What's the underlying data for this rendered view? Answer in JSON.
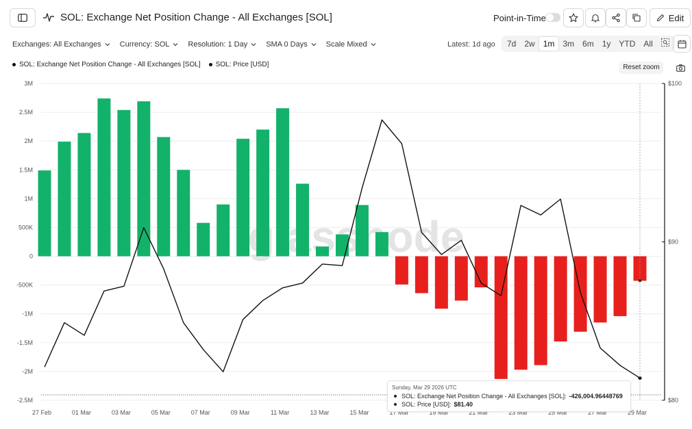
{
  "header": {
    "title": "SOL: Exchange Net Position Change - All Exchanges [SOL]",
    "point_in_time_label": "Point-in-Time",
    "point_in_time_enabled": false,
    "edit_label": "Edit",
    "icons": [
      "sidebar-icon",
      "chart-line-icon",
      "star-icon",
      "bell-icon",
      "share-icon",
      "copy-icon",
      "pencil-icon"
    ]
  },
  "filters": {
    "exchanges": "Exchanges: All Exchanges",
    "currency": "Currency: SOL",
    "resolution": "Resolution: 1 Day",
    "sma": "SMA 0 Days",
    "scale": "Scale Mixed",
    "latest": "Latest: 1d ago",
    "ranges": [
      "7d",
      "2w",
      "1m",
      "3m",
      "6m",
      "1y",
      "YTD",
      "All"
    ],
    "active_range": "1m"
  },
  "legend": {
    "series1": "SOL: Exchange Net Position Change - All Exchanges [SOL]",
    "series2": "SOL: Price [USD]",
    "reset_zoom": "Reset zoom"
  },
  "watermark": "glassnode",
  "tooltip": {
    "date": "Sunday, Mar 29 2026 UTC",
    "row1_label": "SOL: Exchange Net Position Change - All Exchanges [SOL]:",
    "row1_value": "-426,004.96448769",
    "row2_label": "SOL: Price [USD]:",
    "row2_value": "$81.40"
  },
  "colors": {
    "positive": "#13b26b",
    "negative": "#e8201d",
    "price_line": "#111111",
    "grid": "#ececec"
  },
  "chart_data": {
    "type": "bar",
    "categories": [
      "27 Feb",
      "28 Feb",
      "01 Mar",
      "02 Mar",
      "03 Mar",
      "04 Mar",
      "05 Mar",
      "06 Mar",
      "07 Mar",
      "08 Mar",
      "09 Mar",
      "10 Mar",
      "11 Mar",
      "12 Mar",
      "13 Mar",
      "14 Mar",
      "15 Mar",
      "16 Mar",
      "17 Mar",
      "18 Mar",
      "19 Mar",
      "20 Mar",
      "21 Mar",
      "22 Mar",
      "23 Mar",
      "24 Mar",
      "25 Mar",
      "26 Mar",
      "27 Mar",
      "28 Mar",
      "29 Mar"
    ],
    "x_tick_labels": [
      "27 Feb",
      "01 Mar",
      "03 Mar",
      "05 Mar",
      "07 Mar",
      "09 Mar",
      "11 Mar",
      "13 Mar",
      "15 Mar",
      "17 Mar",
      "19 Mar",
      "21 Mar",
      "23 Mar",
      "25 Mar",
      "27 Mar",
      "29 Mar"
    ],
    "series": [
      {
        "name": "SOL: Exchange Net Position Change - All Exchanges [SOL]",
        "axis": "left",
        "type": "bar",
        "values": [
          1490000,
          1990000,
          2140000,
          2740000,
          2540000,
          2690000,
          2070000,
          1500000,
          580000,
          900000,
          2040000,
          2200000,
          2570000,
          1260000,
          170000,
          380000,
          890000,
          420000,
          -490000,
          -640000,
          -910000,
          -770000,
          -540000,
          -2130000,
          -1970000,
          -1890000,
          -1480000,
          -1310000,
          -1150000,
          -1040000,
          -426004.96448769
        ]
      },
      {
        "name": "SOL: Price [USD]",
        "axis": "right",
        "type": "line",
        "values": [
          82.1,
          84.9,
          84.1,
          86.9,
          87.2,
          90.9,
          88.3,
          84.9,
          83.2,
          81.8,
          85.1,
          86.3,
          87.1,
          87.4,
          88.6,
          88.5,
          93.4,
          97.7,
          96.2,
          90.6,
          89.2,
          90.1,
          87.4,
          86.6,
          92.3,
          91.7,
          92.7,
          86.8,
          83.3,
          82.2,
          81.4
        ]
      }
    ],
    "y_left": {
      "min": -2500000,
      "max": 3000000,
      "ticks": [
        -2500000,
        -2000000,
        -1500000,
        -1000000,
        -500000,
        0,
        500000,
        1000000,
        1500000,
        2000000,
        2500000,
        3000000
      ],
      "tick_labels": [
        "-2.5M",
        "-2M",
        "-1.5M",
        "-1M",
        "-500K",
        "0",
        "500K",
        "1M",
        "1.5M",
        "2M",
        "2.5M",
        "3M"
      ]
    },
    "y_right": {
      "min": 80,
      "max": 100,
      "ticks": [
        80,
        90,
        100
      ],
      "tick_labels": [
        "$80",
        "$90",
        "$100"
      ]
    },
    "grid": true,
    "legend_position": "top-left",
    "xlabel": "",
    "ylabel": "",
    "title": ""
  }
}
